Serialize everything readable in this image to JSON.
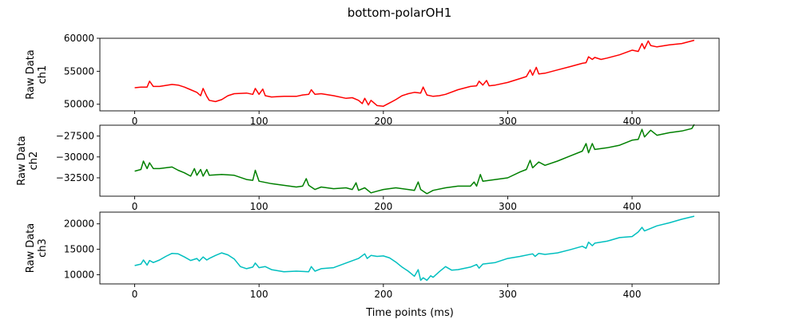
{
  "figure": {
    "title": "bottom-polarOH1",
    "xlabel": "Time points (ms)"
  },
  "chart_data": [
    {
      "type": "line",
      "ylabel": [
        "Raw Data",
        "ch1"
      ],
      "color": "#ff0000",
      "xlim": [
        -28,
        470
      ],
      "ylim": [
        49000,
        60000
      ],
      "xticks": [
        0,
        100,
        200,
        300,
        400
      ],
      "yticks": [
        50000,
        55000,
        60000
      ],
      "x": [
        0,
        5,
        10,
        12,
        15,
        20,
        30,
        35,
        40,
        45,
        50,
        53,
        55,
        58,
        60,
        65,
        70,
        75,
        80,
        90,
        95,
        97,
        100,
        103,
        105,
        110,
        120,
        130,
        135,
        140,
        142,
        145,
        150,
        160,
        170,
        175,
        180,
        183,
        185,
        188,
        190,
        195,
        200,
        205,
        210,
        215,
        220,
        225,
        230,
        232,
        235,
        240,
        245,
        250,
        260,
        270,
        275,
        277,
        280,
        283,
        285,
        290,
        300,
        310,
        315,
        318,
        320,
        323,
        325,
        330,
        340,
        350,
        360,
        363,
        365,
        368,
        370,
        375,
        380,
        390,
        400,
        405,
        408,
        410,
        413,
        415,
        420,
        430,
        440,
        450
      ],
      "values": [
        52500,
        52600,
        52600,
        53500,
        52700,
        52700,
        53000,
        52900,
        52600,
        52200,
        51800,
        51300,
        52400,
        51200,
        50600,
        50400,
        50700,
        51300,
        51600,
        51700,
        51500,
        52400,
        51500,
        52300,
        51300,
        51100,
        51200,
        51200,
        51400,
        51500,
        52200,
        51500,
        51600,
        51300,
        50900,
        51000,
        50600,
        50100,
        50900,
        49900,
        50600,
        49800,
        49700,
        50200,
        50700,
        51300,
        51600,
        51800,
        51700,
        52600,
        51400,
        51200,
        51300,
        51500,
        52200,
        52700,
        52800,
        53500,
        52900,
        53600,
        52800,
        52900,
        53300,
        53900,
        54200,
        55200,
        54400,
        55600,
        54600,
        54700,
        55200,
        55700,
        56200,
        56300,
        57200,
        56800,
        57100,
        56800,
        57000,
        57500,
        58200,
        58000,
        59200,
        58400,
        59600,
        58900,
        58700,
        59000,
        59200,
        59700
      ]
    },
    {
      "type": "line",
      "ylabel": [
        "Raw Data",
        "ch2"
      ],
      "color": "#008000",
      "xlim": [
        -28,
        470
      ],
      "ylim": [
        -34700,
        -26200
      ],
      "xticks": [
        0,
        100,
        200,
        300,
        400
      ],
      "yticks": [
        -32500,
        -30000,
        -27500
      ],
      "x": [
        0,
        5,
        7,
        10,
        12,
        15,
        20,
        30,
        35,
        40,
        45,
        48,
        50,
        53,
        55,
        58,
        60,
        70,
        80,
        90,
        95,
        97,
        100,
        110,
        120,
        130,
        135,
        138,
        140,
        145,
        150,
        160,
        170,
        175,
        178,
        180,
        185,
        190,
        195,
        200,
        210,
        220,
        225,
        228,
        230,
        235,
        240,
        250,
        260,
        270,
        273,
        275,
        278,
        280,
        290,
        300,
        310,
        315,
        318,
        320,
        325,
        330,
        340,
        350,
        360,
        363,
        365,
        368,
        370,
        380,
        390,
        400,
        405,
        408,
        410,
        415,
        420,
        430,
        440,
        448,
        450
      ],
      "values": [
        -31700,
        -31500,
        -30500,
        -31400,
        -30700,
        -31400,
        -31400,
        -31200,
        -31600,
        -31900,
        -32300,
        -31400,
        -32200,
        -31500,
        -32300,
        -31500,
        -32200,
        -32100,
        -32200,
        -32700,
        -32800,
        -31600,
        -32900,
        -33200,
        -33400,
        -33600,
        -33500,
        -32600,
        -33400,
        -33900,
        -33600,
        -33800,
        -33700,
        -33900,
        -33100,
        -34000,
        -33700,
        -34300,
        -34100,
        -33900,
        -33700,
        -33900,
        -34000,
        -33000,
        -33900,
        -34400,
        -34000,
        -33700,
        -33500,
        -33500,
        -33000,
        -33500,
        -32100,
        -32900,
        -32700,
        -32500,
        -31800,
        -31500,
        -30400,
        -31300,
        -30600,
        -31000,
        -30500,
        -29900,
        -29300,
        -28400,
        -29500,
        -28400,
        -29100,
        -28900,
        -28600,
        -28000,
        -27900,
        -26700,
        -27600,
        -26800,
        -27400,
        -27100,
        -26900,
        -26600,
        -26100
      ]
    },
    {
      "type": "line",
      "ylabel": [
        "Raw Data",
        "ch3"
      ],
      "color": "#00bfbf",
      "xlim": [
        -28,
        470
      ],
      "ylim": [
        8200,
        22300
      ],
      "xticks": [
        0,
        100,
        200,
        300,
        400
      ],
      "yticks": [
        10000,
        15000,
        20000
      ],
      "x": [
        0,
        5,
        7,
        10,
        12,
        15,
        20,
        25,
        30,
        35,
        40,
        45,
        50,
        52,
        55,
        58,
        60,
        65,
        70,
        75,
        80,
        85,
        90,
        95,
        97,
        100,
        105,
        110,
        120,
        130,
        140,
        142,
        145,
        150,
        160,
        170,
        180,
        185,
        187,
        190,
        195,
        200,
        205,
        210,
        215,
        220,
        225,
        228,
        230,
        232,
        235,
        238,
        240,
        245,
        250,
        255,
        260,
        270,
        275,
        277,
        280,
        290,
        300,
        310,
        320,
        322,
        325,
        330,
        340,
        350,
        360,
        363,
        365,
        368,
        370,
        380,
        390,
        400,
        405,
        408,
        410,
        420,
        430,
        440,
        450
      ],
      "values": [
        11800,
        12100,
        12900,
        11900,
        12800,
        12400,
        12900,
        13600,
        14200,
        14100,
        13500,
        12800,
        13200,
        12700,
        13500,
        12900,
        13200,
        13800,
        14300,
        13900,
        13100,
        11600,
        11200,
        11500,
        12300,
        11400,
        11600,
        11000,
        10600,
        10700,
        10600,
        11600,
        10700,
        11200,
        11400,
        12300,
        13200,
        14100,
        13200,
        13800,
        13600,
        13700,
        13300,
        12500,
        11500,
        10700,
        9700,
        11000,
        8900,
        9400,
        8900,
        9800,
        9500,
        10600,
        11600,
        10900,
        11000,
        11500,
        12000,
        11300,
        12100,
        12400,
        13200,
        13600,
        14100,
        13600,
        14200,
        14000,
        14300,
        14900,
        15600,
        15200,
        16400,
        15700,
        16200,
        16600,
        17300,
        17500,
        18400,
        19300,
        18600,
        19600,
        20200,
        20900,
        21500
      ]
    }
  ]
}
